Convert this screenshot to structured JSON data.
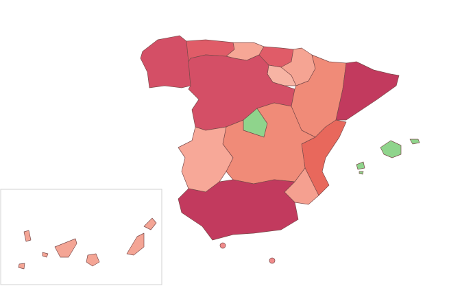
{
  "map": {
    "region_colors": [
      "#d44f66",
      "#e05c68",
      "#f6a796",
      "#e05c68",
      "#f5a493",
      "#f7b4a4",
      "#d44f66",
      "#8fd48c",
      "#f08b78",
      "#c23a5e",
      "#e8685c",
      "#f08b78",
      "#f7a898",
      "#f5a090",
      "#c23a5e",
      "#8fd48c",
      "#f4a595",
      "#f08b8b"
    ]
  }
}
